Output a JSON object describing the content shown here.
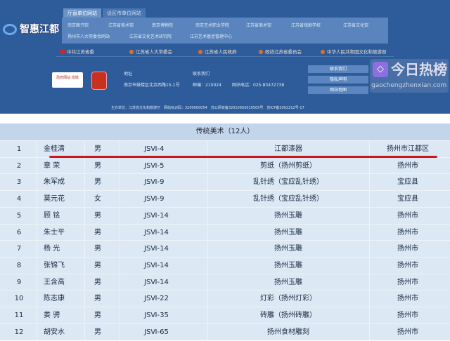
{
  "header": {
    "tabs": [
      "厅直单位网站",
      "设区市单位网站"
    ],
    "links": [
      "南京图书馆",
      "江苏省美术馆",
      "南京博物院",
      "南京艺术职业学院",
      "江苏省美术馆",
      "江苏省戏剧学校",
      "江苏省文化馆",
      "扬州市人大常委会网站",
      "江苏省文化艺术研究院",
      "江苏艺术基金管理中心"
    ],
    "gov_links": [
      "中共江苏省委",
      "江苏省人大常委会",
      "江苏省人民政府",
      "政协江苏省委员会",
      "中华人民共和国文化和旅游部"
    ],
    "logo1_text": "政府网站 找错",
    "address_label": "地址",
    "address": "南京市鼓楼区北京西路15-1号",
    "contact_label": "联系我们",
    "postcode": "邮编：210024",
    "phone": "网站电话：025-83472738",
    "buttons": [
      "联系我们",
      "隐私声明",
      "网站地图"
    ],
    "footer": "主办单位：江苏省文化和旅游厅　网站标识码：3200000054　苏公网安备32010602010505号　苏ICP备2002212号-17"
  },
  "table": {
    "title": "传统美术（12人）",
    "rows": [
      [
        "1",
        "金桂清",
        "男",
        "JSⅥ-4",
        "江都漆器",
        "扬州市江都区"
      ],
      [
        "2",
        "章 荣",
        "男",
        "JSⅥ-5",
        "剪纸（扬州剪纸）",
        "扬州市"
      ],
      [
        "3",
        "朱军成",
        "男",
        "JSⅥ-9",
        "乱针绣（宝应乱针绣）",
        "宝应县"
      ],
      [
        "4",
        "莫元花",
        "女",
        "JSⅥ-9",
        "乱针绣（宝应乱针绣）",
        "宝应县"
      ],
      [
        "5",
        "顾 铭",
        "男",
        "JSⅥ-14",
        "扬州玉雕",
        "扬州市"
      ],
      [
        "6",
        "朱士平",
        "男",
        "JSⅥ-14",
        "扬州玉雕",
        "扬州市"
      ],
      [
        "7",
        "杨 光",
        "男",
        "JSⅥ-14",
        "扬州玉雕",
        "扬州市"
      ],
      [
        "8",
        "张锦飞",
        "男",
        "JSⅥ-14",
        "扬州玉雕",
        "扬州市"
      ],
      [
        "9",
        "王含高",
        "男",
        "JSⅥ-14",
        "扬州玉雕",
        "扬州市"
      ],
      [
        "10",
        "陈志康",
        "男",
        "JSⅥ-22",
        "灯彩（扬州灯彩）",
        "扬州市"
      ],
      [
        "11",
        "娄 骋",
        "男",
        "JSⅥ-35",
        "砖雕（扬州砖雕）",
        "扬州市"
      ],
      [
        "12",
        "胡安水",
        "男",
        "JSⅥ-65",
        "扬州食材雕刻",
        "扬州市"
      ]
    ],
    "highlight_color": "#d0141e"
  },
  "watermark": {
    "text": "今日热榜",
    "url": "gaochengzhenxian.com",
    "brand": "智惠江都"
  }
}
